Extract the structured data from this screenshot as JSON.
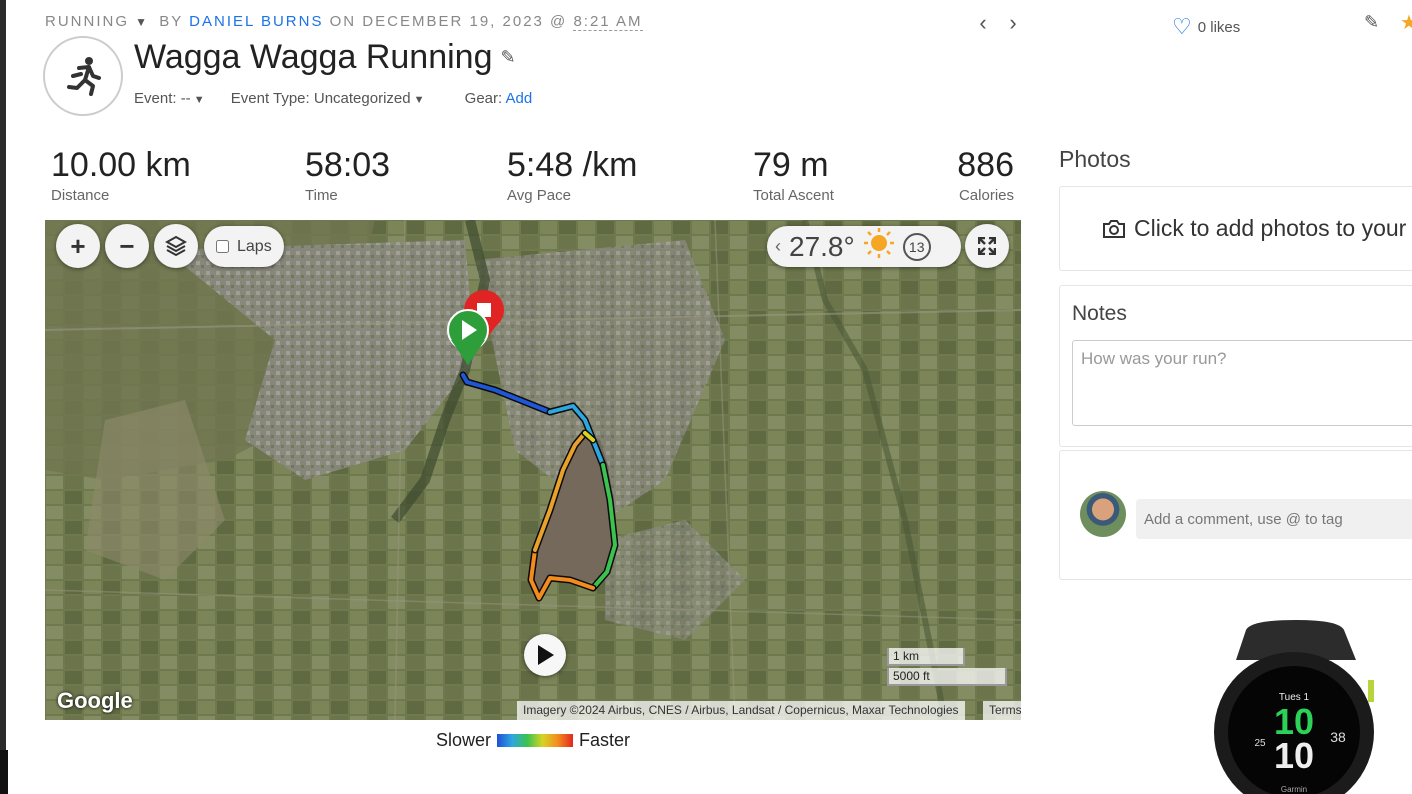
{
  "header": {
    "activity_type": "RUNNING",
    "by_label": "BY",
    "author": "DANIEL BURNS",
    "on_label": "ON DECEMBER 19, 2023 @",
    "time": "8:21 AM",
    "prev": "‹",
    "next": "›",
    "likes": "0 likes"
  },
  "activity": {
    "title": "Wagga Wagga Running",
    "event_label": "Event: --",
    "event_type_label": "Event Type: Uncategorized",
    "gear_label": "Gear:",
    "gear_add": "Add"
  },
  "stats": [
    {
      "value": "10.00 km",
      "label": "Distance"
    },
    {
      "value": "58:03",
      "label": "Time"
    },
    {
      "value": "5:48 /km",
      "label": "Avg Pace"
    },
    {
      "value": "79 m",
      "label": "Total Ascent"
    },
    {
      "value": "886",
      "label": "Calories"
    }
  ],
  "map": {
    "zoom_in": "+",
    "zoom_out": "−",
    "laps_label": "Laps",
    "temperature": "27.8°",
    "wind_speed": "13",
    "provider": "Google",
    "scale_metric": "1 km",
    "scale_imperial": "5000 ft",
    "attribution": "Imagery ©2024 Airbus, CNES / Airbus, Landsat / Copernicus, Maxar Technologies",
    "terms": "Terms"
  },
  "legend": {
    "slower": "Slower",
    "faster": "Faster"
  },
  "sidebar": {
    "photos_title": "Photos",
    "photos_prompt": "Click to add photos to your",
    "notes_title": "Notes",
    "notes_placeholder": "How was your run?",
    "comment_placeholder": "Add a comment, use @ to tag"
  },
  "watch": {
    "day": "Tues 1",
    "time_hour": "10",
    "time_min": "10",
    "left_value": "25",
    "right_value": "38",
    "brand": "Garmin"
  },
  "colors": {
    "link": "#1a73e8",
    "start_marker": "#2e9e3a",
    "finish_marker": "#e02424",
    "star": "#f5a623"
  }
}
